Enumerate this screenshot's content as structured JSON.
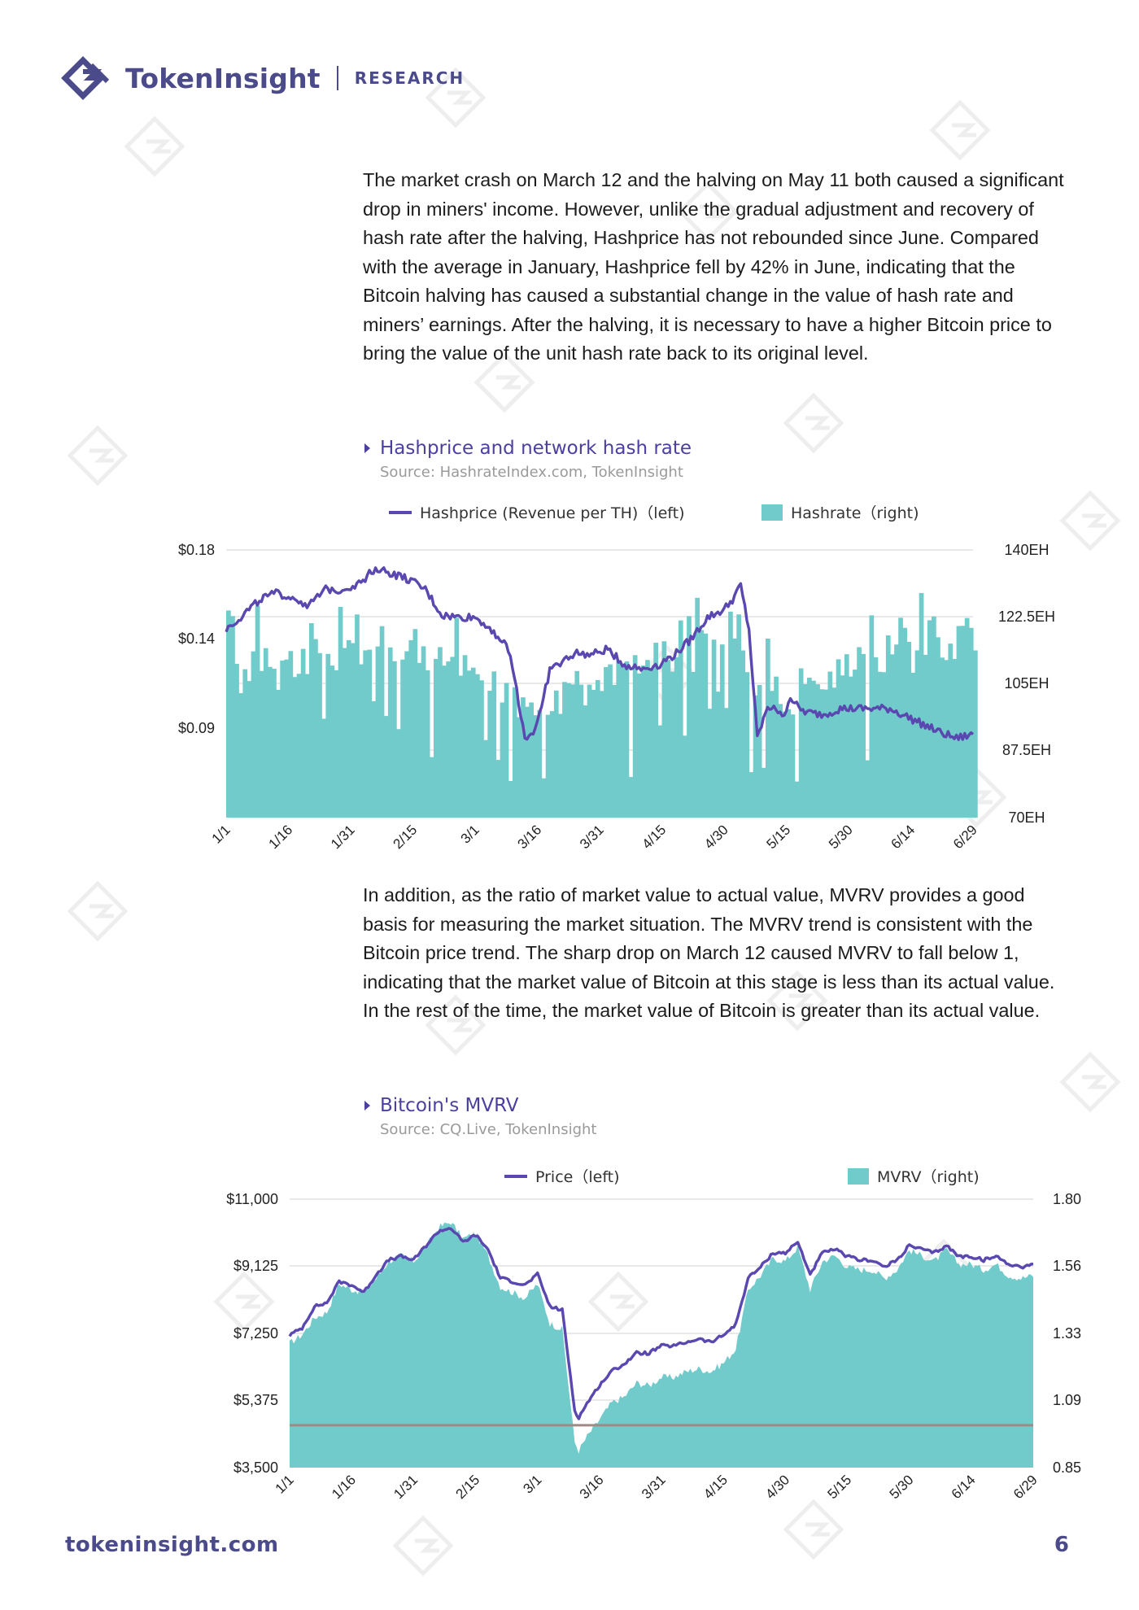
{
  "header": {
    "brand": "TokenInsight",
    "section": "RESEARCH"
  },
  "paragraphs": {
    "p1": "The market crash on March 12 and the halving on May 11 both caused a significant drop in miners' income. However, unlike the gradual adjustment and recovery of hash rate after the halving, Hashprice has not rebounded since June. Compared with the average in January, Hashprice fell by 42% in June, indicating that the Bitcoin halving has caused a substantial change in the value of hash rate and miners’ earnings. After the halving, it is necessary to have a higher Bitcoin price to bring the value of the unit hash rate back to its original level.",
    "p2": "In addition, as the ratio of market value to actual value, MVRV provides a good basis for measuring the market situation. The MVRV trend is consistent with the Bitcoin price trend. The sharp drop on March 12 caused MVRV to fall below 1, indicating that the market value of Bitcoin at this stage is less than its actual value. In the rest of the time, the market value of Bitcoin is greater than its actual value."
  },
  "chart_data": [
    {
      "type": "line+bar",
      "title": "Hashprice and network hash rate",
      "source": "Source: HashrateIndex.com, TokenInsight",
      "legend_placement": "top",
      "legend": {
        "line": "Hashprice (Revenue per TH)（left)",
        "bars": "Hashrate（right)"
      },
      "colors": {
        "line": "#5a47b0",
        "area": "#72cbcb",
        "grid": "#e2e2e2"
      },
      "grid": true,
      "x_tick_labels": [
        "1/1",
        "1/16",
        "1/31",
        "2/15",
        "3/1",
        "3/16",
        "3/31",
        "4/15",
        "4/30",
        "5/15",
        "5/30",
        "6/14",
        "6/29"
      ],
      "left_axis": {
        "ticks": [
          "$0.18",
          "$0.14",
          "$0.09"
        ],
        "range": [
          0.045,
          0.18
        ]
      },
      "right_axis": {
        "ticks": [
          "140EH",
          "122.5EH",
          "105EH",
          "87.5EH",
          "70EH"
        ],
        "range": [
          70,
          140
        ]
      },
      "series": [
        {
          "name": "Hashprice (Revenue per TH)",
          "axis": "left",
          "x_day": [
            0,
            4,
            8,
            12,
            16,
            20,
            24,
            28,
            32,
            36,
            40,
            44,
            48,
            52,
            56,
            60,
            64,
            68,
            70,
            72,
            74,
            76,
            78,
            80,
            84,
            88,
            92,
            96,
            100,
            104,
            108,
            112,
            116,
            120,
            122,
            124,
            126,
            128,
            130,
            132,
            134,
            136,
            138,
            140,
            144,
            148,
            152,
            156,
            160,
            164,
            168,
            172,
            176,
            180
          ],
          "values": [
            0.14,
            0.147,
            0.155,
            0.158,
            0.156,
            0.152,
            0.16,
            0.16,
            0.163,
            0.171,
            0.168,
            0.165,
            0.16,
            0.147,
            0.146,
            0.146,
            0.14,
            0.13,
            0.11,
            0.085,
            0.088,
            0.1,
            0.12,
            0.122,
            0.128,
            0.127,
            0.13,
            0.122,
            0.12,
            0.122,
            0.127,
            0.135,
            0.146,
            0.15,
            0.155,
            0.162,
            0.14,
            0.085,
            0.098,
            0.102,
            0.095,
            0.106,
            0.1,
            0.098,
            0.097,
            0.1,
            0.1,
            0.1,
            0.1,
            0.096,
            0.092,
            0.088,
            0.085,
            0.087
          ]
        },
        {
          "name": "Hashrate",
          "axis": "right",
          "x_day": [
            0,
            4,
            8,
            12,
            16,
            20,
            24,
            28,
            32,
            36,
            40,
            44,
            48,
            52,
            56,
            60,
            64,
            68,
            70,
            72,
            74,
            76,
            78,
            80,
            84,
            88,
            92,
            96,
            100,
            104,
            108,
            112,
            116,
            120,
            122,
            124,
            126,
            128,
            130,
            132,
            134,
            136,
            138,
            140,
            144,
            148,
            152,
            156,
            160,
            164,
            168,
            172,
            176,
            180
          ],
          "values": [
            110,
            106,
            112,
            108,
            110,
            113,
            110,
            114,
            112,
            116,
            114,
            113,
            112,
            110,
            111,
            108,
            106,
            100,
            100,
            98,
            96,
            98,
            100,
            100,
            104,
            104,
            108,
            108,
            109,
            112,
            112,
            113,
            116,
            118,
            120,
            118,
            102,
            100,
            102,
            104,
            100,
            101,
            102,
            104,
            108,
            108,
            110,
            112,
            114,
            112,
            113,
            114,
            116,
            116
          ]
        }
      ]
    },
    {
      "type": "line+area",
      "title": "Bitcoin's MVRV",
      "source": "Source: CQ.Live, TokenInsight",
      "legend_placement": "top",
      "legend": {
        "line": "Price（left)",
        "area": "MVRV（right)"
      },
      "colors": {
        "line": "#5a47b0",
        "area": "#72cbcb",
        "reference_line": "#a08a84",
        "grid": "#e2e2e2"
      },
      "grid": true,
      "x_tick_labels": [
        "1/1",
        "1/16",
        "1/31",
        "2/15",
        "3/1",
        "3/16",
        "3/31",
        "4/15",
        "4/30",
        "5/15",
        "5/30",
        "6/14",
        "6/29"
      ],
      "left_axis": {
        "ticks": [
          "$11,000",
          "$9,125",
          "$7,250",
          "$5,375",
          "$3,500"
        ],
        "range": [
          3500,
          11000
        ]
      },
      "right_axis": {
        "ticks": [
          "1.80",
          "1.56",
          "1.33",
          "1.09",
          "0.85"
        ],
        "range": [
          0.85,
          1.8
        ]
      },
      "reference_line_value": 1.0,
      "series": [
        {
          "name": "Price",
          "axis": "left",
          "x_day": [
            0,
            3,
            6,
            9,
            12,
            15,
            18,
            21,
            24,
            27,
            30,
            33,
            36,
            39,
            42,
            45,
            48,
            51,
            54,
            57,
            60,
            63,
            66,
            69,
            70,
            72,
            75,
            78,
            81,
            84,
            87,
            90,
            93,
            96,
            99,
            102,
            105,
            108,
            111,
            114,
            117,
            120,
            123,
            126,
            129,
            132,
            135,
            138,
            141,
            144,
            147,
            150,
            153,
            156,
            159,
            162,
            165,
            168,
            171,
            174,
            177,
            180
          ],
          "values": [
            7200,
            7400,
            8000,
            8100,
            8700,
            8600,
            8400,
            8900,
            9300,
            9400,
            9300,
            9700,
            10100,
            10200,
            9800,
            10000,
            9600,
            8800,
            8700,
            8600,
            8900,
            8000,
            7900,
            5100,
            4900,
            5300,
            5800,
            6200,
            6400,
            6700,
            6700,
            6900,
            6900,
            7000,
            7100,
            7000,
            7200,
            7500,
            8800,
            9100,
            9500,
            9500,
            9800,
            8900,
            9500,
            9600,
            9400,
            9300,
            9300,
            9100,
            9300,
            9700,
            9600,
            9500,
            9700,
            9400,
            9400,
            9300,
            9400,
            9200,
            9100,
            9200
          ]
        },
        {
          "name": "MVRV",
          "axis": "right",
          "x_day": [
            0,
            3,
            6,
            9,
            12,
            15,
            18,
            21,
            24,
            27,
            30,
            33,
            36,
            39,
            42,
            45,
            48,
            51,
            54,
            57,
            60,
            63,
            66,
            69,
            70,
            72,
            75,
            78,
            81,
            84,
            87,
            90,
            93,
            96,
            99,
            102,
            105,
            108,
            111,
            114,
            117,
            120,
            123,
            126,
            129,
            132,
            135,
            138,
            141,
            144,
            147,
            150,
            153,
            156,
            159,
            162,
            165,
            168,
            171,
            174,
            177,
            180
          ],
          "values": [
            1.29,
            1.32,
            1.38,
            1.4,
            1.5,
            1.48,
            1.47,
            1.52,
            1.58,
            1.6,
            1.58,
            1.63,
            1.7,
            1.72,
            1.66,
            1.68,
            1.6,
            1.49,
            1.47,
            1.45,
            1.5,
            1.36,
            1.34,
            0.94,
            0.91,
            0.96,
            1.02,
            1.08,
            1.1,
            1.15,
            1.14,
            1.17,
            1.17,
            1.19,
            1.2,
            1.19,
            1.22,
            1.27,
            1.48,
            1.53,
            1.59,
            1.58,
            1.63,
            1.48,
            1.58,
            1.6,
            1.56,
            1.55,
            1.55,
            1.52,
            1.55,
            1.62,
            1.6,
            1.58,
            1.62,
            1.57,
            1.57,
            1.55,
            1.57,
            1.53,
            1.52,
            1.53
          ]
        }
      ]
    }
  ],
  "footer": {
    "url": "tokeninsight.com",
    "page": "6"
  }
}
